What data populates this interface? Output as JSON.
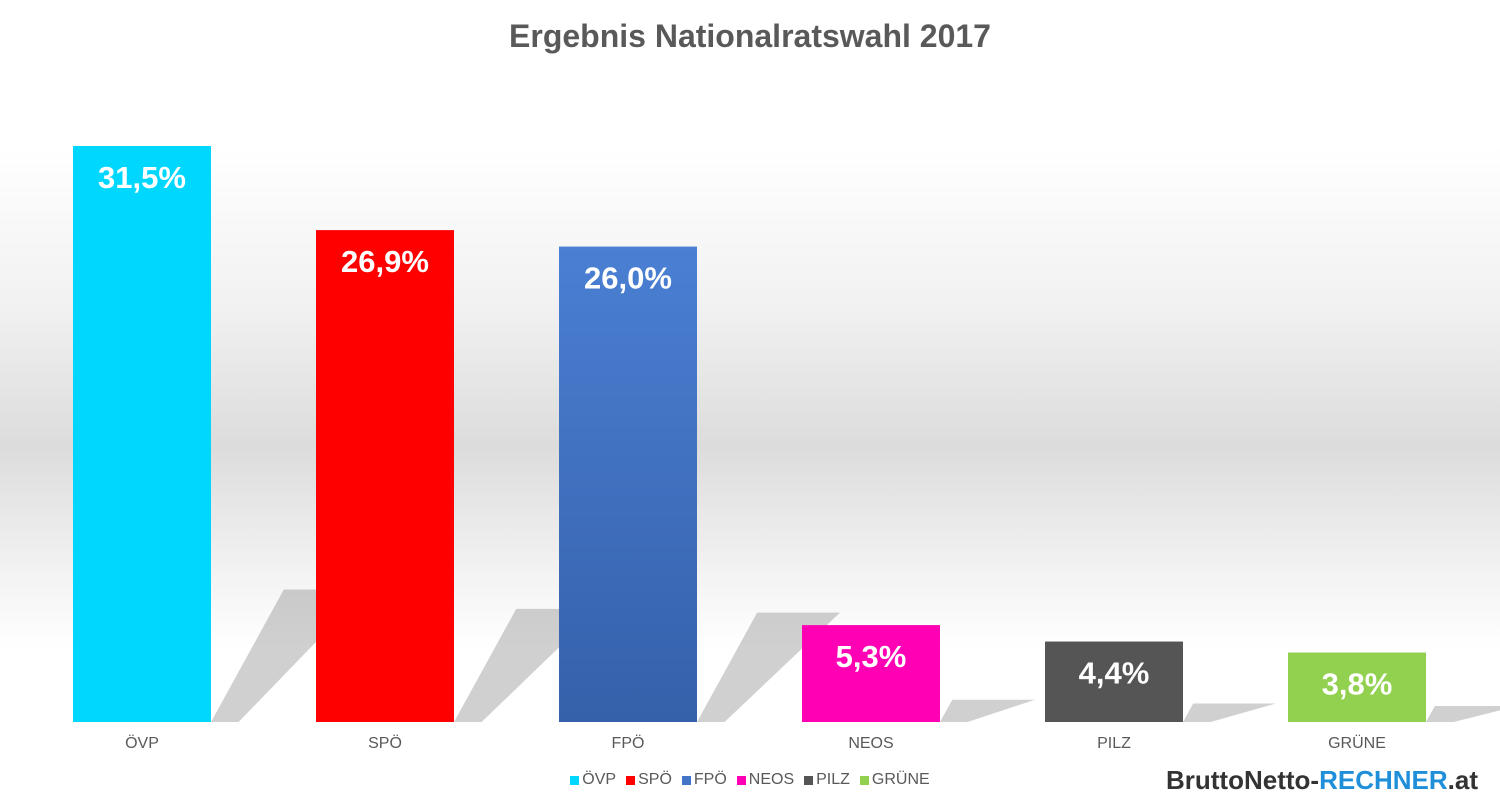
{
  "chart_data": {
    "type": "bar",
    "title": "Ergebnis Nationalratswahl 2017",
    "categories": [
      "ÖVP",
      "SPÖ",
      "FPÖ",
      "NEOS",
      "PILZ",
      "GRÜNE"
    ],
    "values": [
      31.5,
      26.9,
      26.0,
      5.3,
      4.4,
      3.8
    ],
    "value_labels": [
      "31,5%",
      "26,9%",
      "26,0%",
      "5,3%",
      "4,4%",
      "3,8%"
    ],
    "colors": [
      "#00d7ff",
      "#ff0000",
      "#4275c7",
      "#ff00b4",
      "#555555",
      "#92d050"
    ],
    "ylim": [
      0,
      31.5
    ],
    "grid": false,
    "legend_position": "bottom",
    "legend": [
      "ÖVP",
      "SPÖ",
      "FPÖ",
      "NEOS",
      "PILZ",
      "GRÜNE"
    ]
  },
  "brand": {
    "part1": "BruttoNetto-",
    "part2": "RECHNER",
    "part3": ".at"
  }
}
